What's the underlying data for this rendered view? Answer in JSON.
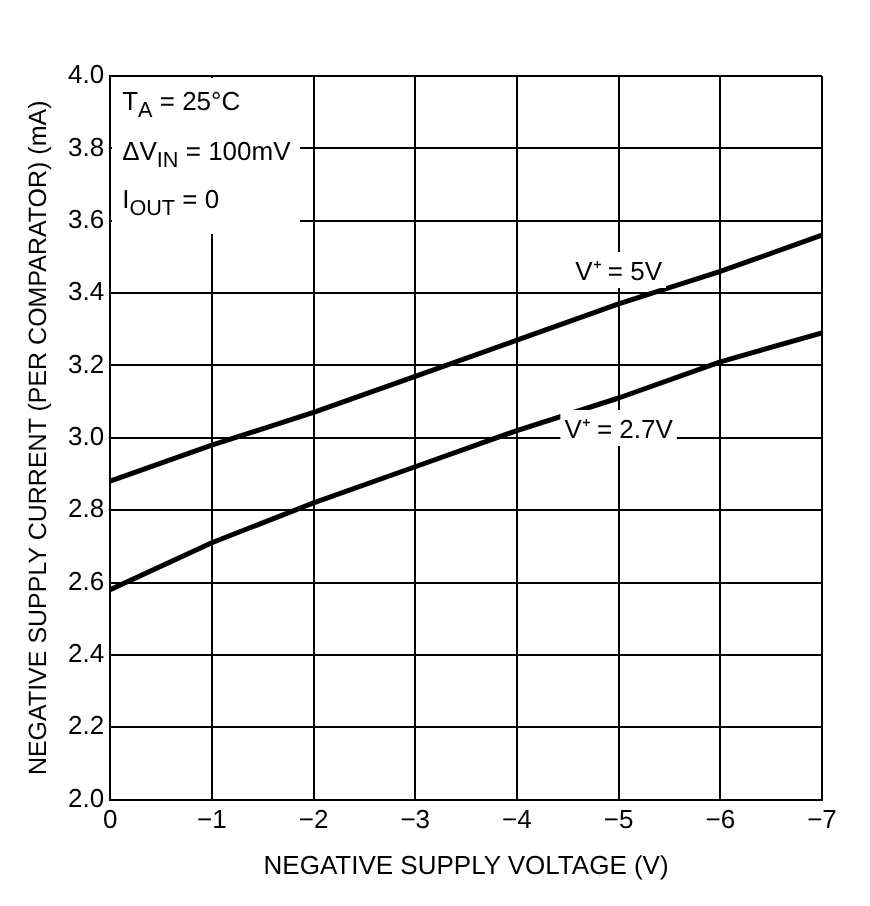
{
  "chart_data": {
    "type": "line",
    "xlabel": "NEGATIVE SUPPLY VOLTAGE (V)",
    "ylabel": "NEGATIVE SUPPLY CURRENT (PER COMPARATOR) (mA)",
    "annotations": [
      "T$_{A}$ = 25°C",
      "ΔV$_{IN}$ = 100mV",
      "I$_{OUT}$ = 0"
    ],
    "x": [
      0,
      -1,
      -2,
      -3,
      -4,
      -5,
      -6,
      -7
    ],
    "series": [
      {
        "name": "V⁺ = 5V",
        "color": "#000000",
        "values": [
          2.88,
          2.98,
          3.07,
          3.17,
          3.27,
          3.37,
          3.46,
          3.56
        ]
      },
      {
        "name": "V⁺ = 2.7V",
        "color": "#000000",
        "values": [
          2.58,
          2.71,
          2.82,
          2.92,
          3.02,
          3.11,
          3.21,
          3.29
        ]
      }
    ],
    "xlim": [
      0,
      -7
    ],
    "xticks": [
      0,
      {
        "value": -1,
        "label": "−1"
      },
      {
        "value": -2,
        "label": "−2"
      },
      {
        "value": -3,
        "label": "−3"
      },
      {
        "value": -4,
        "label": "−4"
      },
      {
        "value": -5,
        "label": "−5"
      },
      {
        "value": -6,
        "label": "−6"
      },
      {
        "value": -7,
        "label": "−7"
      }
    ],
    "ylim": [
      2.0,
      4.0
    ],
    "yticks": [
      {
        "value": 2.0,
        "label": "2.0"
      },
      {
        "value": 2.2,
        "label": "2.2"
      },
      {
        "value": 2.4,
        "label": "2.4"
      },
      {
        "value": 2.6,
        "label": "2.6"
      },
      {
        "value": 2.8,
        "label": "2.8"
      },
      {
        "value": 3.0,
        "label": "3.0"
      },
      {
        "value": 3.2,
        "label": "3.2"
      },
      {
        "value": 3.4,
        "label": "3.4"
      },
      {
        "value": 3.6,
        "label": "3.6"
      },
      {
        "value": 3.8,
        "label": "3.8"
      },
      {
        "value": 4.0,
        "label": "4.0"
      }
    ],
    "grid": true,
    "legend": false,
    "marker": "none",
    "line_style": "solid"
  }
}
